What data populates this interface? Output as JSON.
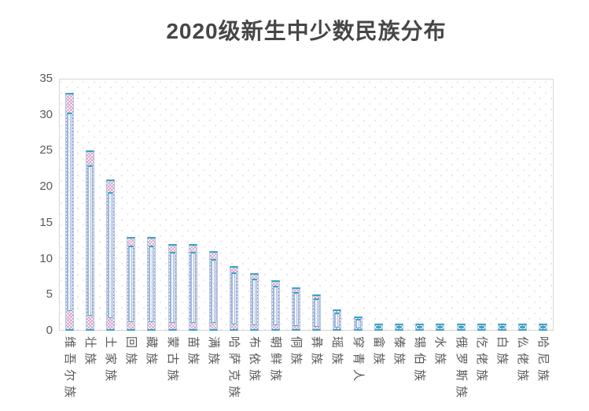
{
  "title": "2020级新生中少数民族分布",
  "chart_data": {
    "type": "bar",
    "title": "2020级新生中少数民族分布",
    "categories": [
      "维吾尔族",
      "壮族",
      "土家族",
      "回族",
      "藏族",
      "蒙古族",
      "苗族",
      "满族",
      "哈萨克族",
      "布依族",
      "朝鲜族",
      "侗族",
      "彝族",
      "瑶族",
      "穿青人",
      "畲族",
      "傣族",
      "锡伯族",
      "水族",
      "俄罗斯族",
      "仡佬族",
      "白族",
      "仫佬族",
      "哈尼族"
    ],
    "values": [
      33,
      25,
      21,
      13,
      13,
      12,
      12,
      11,
      9,
      8,
      7,
      6,
      5,
      3,
      2,
      1,
      1,
      1,
      1,
      1,
      1,
      1,
      1,
      1
    ],
    "xlabel": "",
    "ylabel": "",
    "ylim": [
      0,
      35
    ],
    "yticks": [
      0,
      5,
      10,
      15,
      20,
      25,
      30,
      35
    ],
    "grid": false,
    "legend_position": "none",
    "style": {
      "bar_cap_color": "#2fa6c6",
      "bar_outer_border": "#a9c9e6",
      "bar_hatch_pink": "#c671ae",
      "bar_inner_border": "#8fb4da",
      "bar_stripe_blue": "#9dc0e2",
      "plot_border": "#d7d7d7",
      "plot_pattern_dots": "#e8e8e8",
      "axis_text": "#595959",
      "title_text": "#464646"
    }
  }
}
